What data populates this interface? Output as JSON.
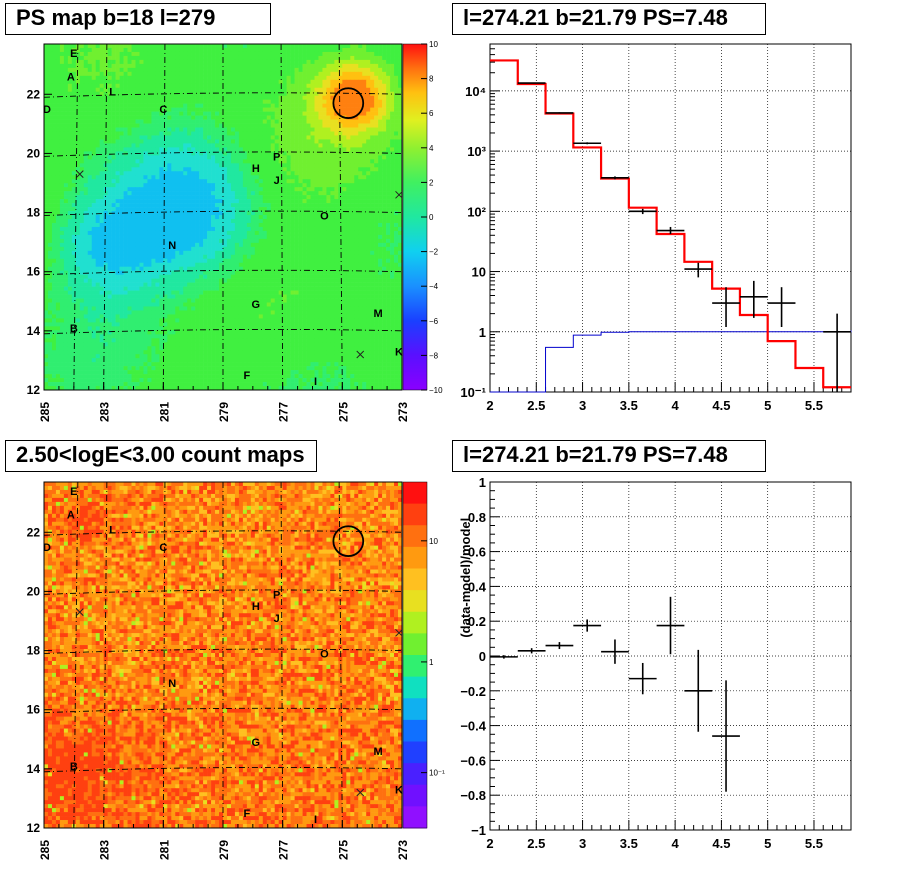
{
  "panels": {
    "top_left_title": "PS map b=18 l=279",
    "top_right_title": "l=274.21 b=21.79 PS=7.48",
    "bottom_left_title": "2.50<logE<3.00 count maps",
    "bottom_right_title": "l=274.21 b=21.79 PS=7.48"
  },
  "colors": {
    "data": "#000000",
    "model": "#ff0000",
    "background_model": "#0000cc",
    "grid": "#000000"
  },
  "chart_data": [
    {
      "type": "heatmap",
      "title": "PS map b=18 l=279",
      "x_tick_labels": [
        "285",
        "283",
        "281",
        "279",
        "277",
        "275",
        "273"
      ],
      "y_tick_labels": [
        "12",
        "14",
        "16",
        "18",
        "20",
        "22"
      ],
      "xlim": [
        285,
        273
      ],
      "ylim": [
        12,
        23.7
      ],
      "colorbar_ticks": [
        "10",
        "8",
        "6",
        "4",
        "2",
        "0",
        "−2",
        "−4",
        "−6",
        "−8",
        "−10"
      ],
      "colorbar_range": [
        -10,
        10
      ],
      "source_labels": [
        {
          "label": "E",
          "l": 284.0,
          "b": 23.4
        },
        {
          "label": "A",
          "l": 284.1,
          "b": 22.6
        },
        {
          "label": "L",
          "l": 282.7,
          "b": 22.1
        },
        {
          "label": "D",
          "l": 284.9,
          "b": 21.5
        },
        {
          "label": "C",
          "l": 281.0,
          "b": 21.5
        },
        {
          "label": "P",
          "l": 277.2,
          "b": 19.9
        },
        {
          "label": "H",
          "l": 277.9,
          "b": 19.5
        },
        {
          "label": "J",
          "l": 277.2,
          "b": 19.1
        },
        {
          "label": "O",
          "l": 275.6,
          "b": 17.9
        },
        {
          "label": "N",
          "l": 280.7,
          "b": 16.9
        },
        {
          "label": "G",
          "l": 277.9,
          "b": 14.9
        },
        {
          "label": "M",
          "l": 273.8,
          "b": 14.6
        },
        {
          "label": "B",
          "l": 284.0,
          "b": 14.1
        },
        {
          "label": "K",
          "l": 273.1,
          "b": 13.3
        },
        {
          "label": "F",
          "l": 278.2,
          "b": 12.5
        },
        {
          "label": "I",
          "l": 275.9,
          "b": 12.3
        }
      ],
      "cross_markers": [
        {
          "l": 283.8,
          "b": 19.3
        },
        {
          "l": 273.1,
          "b": 18.6
        },
        {
          "l": 274.4,
          "b": 13.2
        }
      ],
      "circle": {
        "l": 274.8,
        "b": 21.7,
        "radius_deg": 0.5
      }
    },
    {
      "type": "line",
      "title": "l=274.21 b=21.79 PS=7.48",
      "yscale": "log",
      "xlim": [
        2.0,
        5.9
      ],
      "ylim": [
        0.1,
        60000
      ],
      "grid": true,
      "x_tick_labels": [
        "2",
        "2.5",
        "3",
        "3.5",
        "4",
        "4.5",
        "5",
        "5.5"
      ],
      "y_tick_labels": [
        "10⁻¹",
        "1",
        "10",
        "10²",
        "10³",
        "10⁴"
      ],
      "bin_edges": [
        2.0,
        2.3,
        2.6,
        2.9,
        3.2,
        3.5,
        3.8,
        4.1,
        4.4,
        4.7,
        5.0,
        5.3,
        5.6,
        5.9
      ],
      "series": [
        {
          "kind": "model_total",
          "values": [
            32000,
            13000,
            4200,
            1150,
            350,
            115,
            42,
            14.5,
            5.2,
            1.9,
            0.7,
            0.25,
            0.12
          ]
        },
        {
          "kind": "background",
          "values": [
            0.1,
            0.1,
            0.55,
            0.88,
            0.98,
            1.0,
            1.0,
            1.0,
            1.0,
            1.0,
            1.0,
            1.0,
            1.0,
            1.05
          ]
        },
        {
          "kind": "data",
          "points": [
            {
              "x": 2.45,
              "y": 13500,
              "xerr": 0.15,
              "ylo": 13300,
              "yhi": 13700
            },
            {
              "x": 2.75,
              "y": 4300,
              "xerr": 0.15,
              "ylo": 4200,
              "yhi": 4400
            },
            {
              "x": 3.05,
              "y": 1350,
              "xerr": 0.15,
              "ylo": 1300,
              "yhi": 1400
            },
            {
              "x": 3.35,
              "y": 360,
              "xerr": 0.15,
              "ylo": 340,
              "yhi": 380
            },
            {
              "x": 3.65,
              "y": 100,
              "xerr": 0.15,
              "ylo": 90,
              "yhi": 110
            },
            {
              "x": 3.95,
              "y": 48,
              "xerr": 0.15,
              "ylo": 42,
              "yhi": 55
            },
            {
              "x": 4.25,
              "y": 11,
              "xerr": 0.15,
              "ylo": 8,
              "yhi": 14
            },
            {
              "x": 4.55,
              "y": 3,
              "xerr": 0.15,
              "ylo": 1.2,
              "yhi": 5.5
            },
            {
              "x": 4.85,
              "y": 3.8,
              "xerr": 0.15,
              "ylo": 1.7,
              "yhi": 7
            },
            {
              "x": 5.15,
              "y": 3,
              "xerr": 0.15,
              "ylo": 1.2,
              "yhi": 5.5
            },
            {
              "x": 5.75,
              "y": 1,
              "xerr": 0.15,
              "ylo": 0.1,
              "yhi": 2
            }
          ]
        }
      ]
    },
    {
      "type": "heatmap",
      "title": "2.50<logE<3.00 count maps",
      "x_tick_labels": [
        "285",
        "283",
        "281",
        "279",
        "277",
        "275",
        "273"
      ],
      "y_tick_labels": [
        "12",
        "14",
        "16",
        "18",
        "20",
        "22"
      ],
      "xlim": [
        285,
        273
      ],
      "ylim": [
        12,
        23.7
      ],
      "colorbar_ticks": [
        "10",
        "1",
        "10⁻¹"
      ],
      "colorbar_scale": "log",
      "source_labels": [
        {
          "label": "E",
          "l": 284.0,
          "b": 23.4
        },
        {
          "label": "A",
          "l": 284.1,
          "b": 22.6
        },
        {
          "label": "L",
          "l": 282.7,
          "b": 22.1
        },
        {
          "label": "D",
          "l": 284.9,
          "b": 21.5
        },
        {
          "label": "C",
          "l": 281.0,
          "b": 21.5
        },
        {
          "label": "P",
          "l": 277.2,
          "b": 19.9
        },
        {
          "label": "H",
          "l": 277.9,
          "b": 19.5
        },
        {
          "label": "J",
          "l": 277.2,
          "b": 19.1
        },
        {
          "label": "O",
          "l": 275.6,
          "b": 17.9
        },
        {
          "label": "N",
          "l": 280.7,
          "b": 16.9
        },
        {
          "label": "G",
          "l": 277.9,
          "b": 14.9
        },
        {
          "label": "M",
          "l": 273.8,
          "b": 14.6
        },
        {
          "label": "B",
          "l": 284.0,
          "b": 14.1
        },
        {
          "label": "K",
          "l": 273.1,
          "b": 13.3
        },
        {
          "label": "F",
          "l": 278.2,
          "b": 12.5
        },
        {
          "label": "I",
          "l": 275.9,
          "b": 12.3
        }
      ],
      "cross_markers": [
        {
          "l": 283.8,
          "b": 19.3
        },
        {
          "l": 273.1,
          "b": 18.6
        },
        {
          "l": 274.4,
          "b": 13.2
        }
      ],
      "circle": {
        "l": 274.8,
        "b": 21.7,
        "radius_deg": 0.5
      }
    },
    {
      "type": "scatter",
      "title": "l=274.21 b=21.79 PS=7.48",
      "ylabel": "(data-model)/model",
      "xlim": [
        2.0,
        5.9
      ],
      "ylim": [
        -1,
        1
      ],
      "grid": true,
      "x_tick_labels": [
        "2",
        "2.5",
        "3",
        "3.5",
        "4",
        "4.5",
        "5",
        "5.5"
      ],
      "y_tick_labels": [
        "−1",
        "−0.8",
        "−0.6",
        "−0.4",
        "−0.2",
        "0",
        "0.2",
        "0.4",
        "0.6",
        "0.8",
        "1"
      ],
      "points": [
        {
          "x": 2.15,
          "y": -0.005,
          "xerr": 0.15,
          "yerr": 0.01
        },
        {
          "x": 2.45,
          "y": 0.03,
          "xerr": 0.15,
          "yerr": 0.015
        },
        {
          "x": 2.75,
          "y": 0.06,
          "xerr": 0.15,
          "yerr": 0.02
        },
        {
          "x": 3.05,
          "y": 0.175,
          "xerr": 0.15,
          "yerr": 0.035
        },
        {
          "x": 3.35,
          "y": 0.025,
          "xerr": 0.15,
          "yerr": 0.07
        },
        {
          "x": 3.65,
          "y": -0.13,
          "xerr": 0.15,
          "yerr": 0.09
        },
        {
          "x": 3.95,
          "y": 0.175,
          "xerr": 0.15,
          "yerr": 0.165
        },
        {
          "x": 4.25,
          "y": -0.2,
          "xerr": 0.15,
          "yerr": 0.235
        },
        {
          "x": 4.55,
          "y": -0.46,
          "xerr": 0.15,
          "yerr": 0.32
        }
      ]
    }
  ]
}
